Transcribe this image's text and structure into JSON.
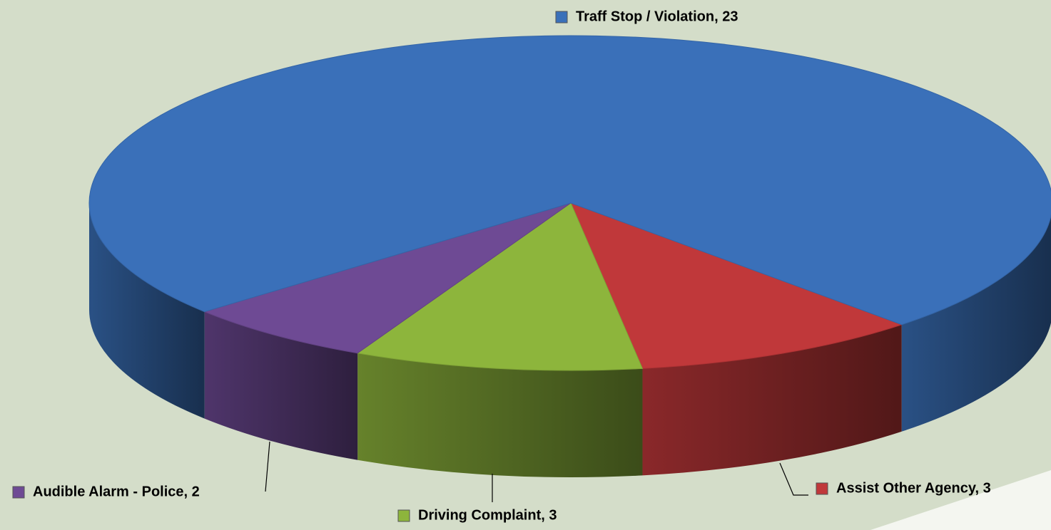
{
  "chart_data": {
    "type": "pie3d",
    "values": [
      3,
      3,
      2,
      23
    ],
    "value_labels": [
      "Assist Other Agency, 3",
      "Driving Complaint, 3",
      "Audible Alarm - Police, 2",
      "Traff Stop / Violation, 23"
    ],
    "colors": [
      "#c0383a",
      "#8db53c",
      "#6e4a94",
      "#3a70b9"
    ]
  }
}
